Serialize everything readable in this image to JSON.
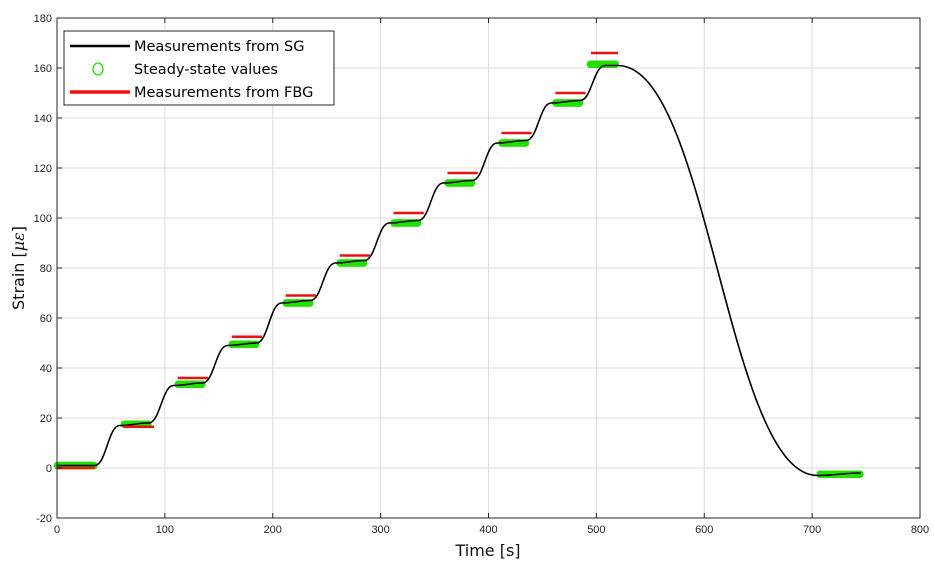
{
  "chart_data": {
    "type": "line",
    "xlabel": "Time [s]",
    "ylabel_text": "Strain [",
    "ylabel_symbol": "με",
    "ylabel_close": "]",
    "xlim": [
      0,
      800
    ],
    "ylim": [
      -20,
      180
    ],
    "xticks": [
      "0",
      "100",
      "200",
      "300",
      "400",
      "500",
      "600",
      "700",
      "800"
    ],
    "yticks": [
      "-20",
      "0",
      "20",
      "40",
      "60",
      "80",
      "100",
      "120",
      "140",
      "160",
      "180"
    ],
    "grid": true,
    "legend_position": "top-left",
    "legend": [
      "Measurements from SG",
      "Steady-state values",
      "Measurements from FBG"
    ],
    "colors": {
      "sg": "#000000",
      "steady": "#22e000",
      "fbg": "#ee1111",
      "grid": "#dcdcdc",
      "axis": "#262626"
    },
    "series": [
      {
        "name": "Measurements from SG",
        "x": [
          0,
          35,
          58,
          85,
          108,
          135,
          158,
          185,
          208,
          235,
          258,
          285,
          308,
          335,
          358,
          385,
          408,
          435,
          458,
          485,
          508,
          520,
          705,
          745
        ],
        "y": [
          1,
          1,
          17,
          18,
          33,
          34,
          49,
          50,
          66,
          67,
          82,
          83,
          98,
          99,
          114,
          115,
          130,
          131,
          146,
          147,
          161,
          161,
          -3,
          -2
        ]
      },
      {
        "name": "Steady-state values",
        "segments": [
          [
            0,
            35,
            1
          ],
          [
            62,
            85,
            17.5
          ],
          [
            112,
            135,
            33.5
          ],
          [
            162,
            185,
            49.5
          ],
          [
            212,
            235,
            66
          ],
          [
            262,
            285,
            82
          ],
          [
            312,
            335,
            98
          ],
          [
            362,
            385,
            114
          ],
          [
            412,
            435,
            130
          ],
          [
            462,
            485,
            146
          ],
          [
            494,
            518,
            161.5
          ],
          [
            707,
            745,
            -2.5
          ]
        ]
      },
      {
        "name": "Measurements from FBG",
        "segments": [
          [
            0,
            35,
            0
          ],
          [
            62,
            90,
            16.5
          ],
          [
            112,
            140,
            36
          ],
          [
            162,
            190,
            52.5
          ],
          [
            212,
            240,
            69
          ],
          [
            262,
            290,
            85
          ],
          [
            312,
            340,
            102
          ],
          [
            362,
            390,
            118
          ],
          [
            412,
            440,
            134
          ],
          [
            462,
            490,
            150
          ],
          [
            495,
            520,
            166
          ]
        ]
      }
    ]
  }
}
